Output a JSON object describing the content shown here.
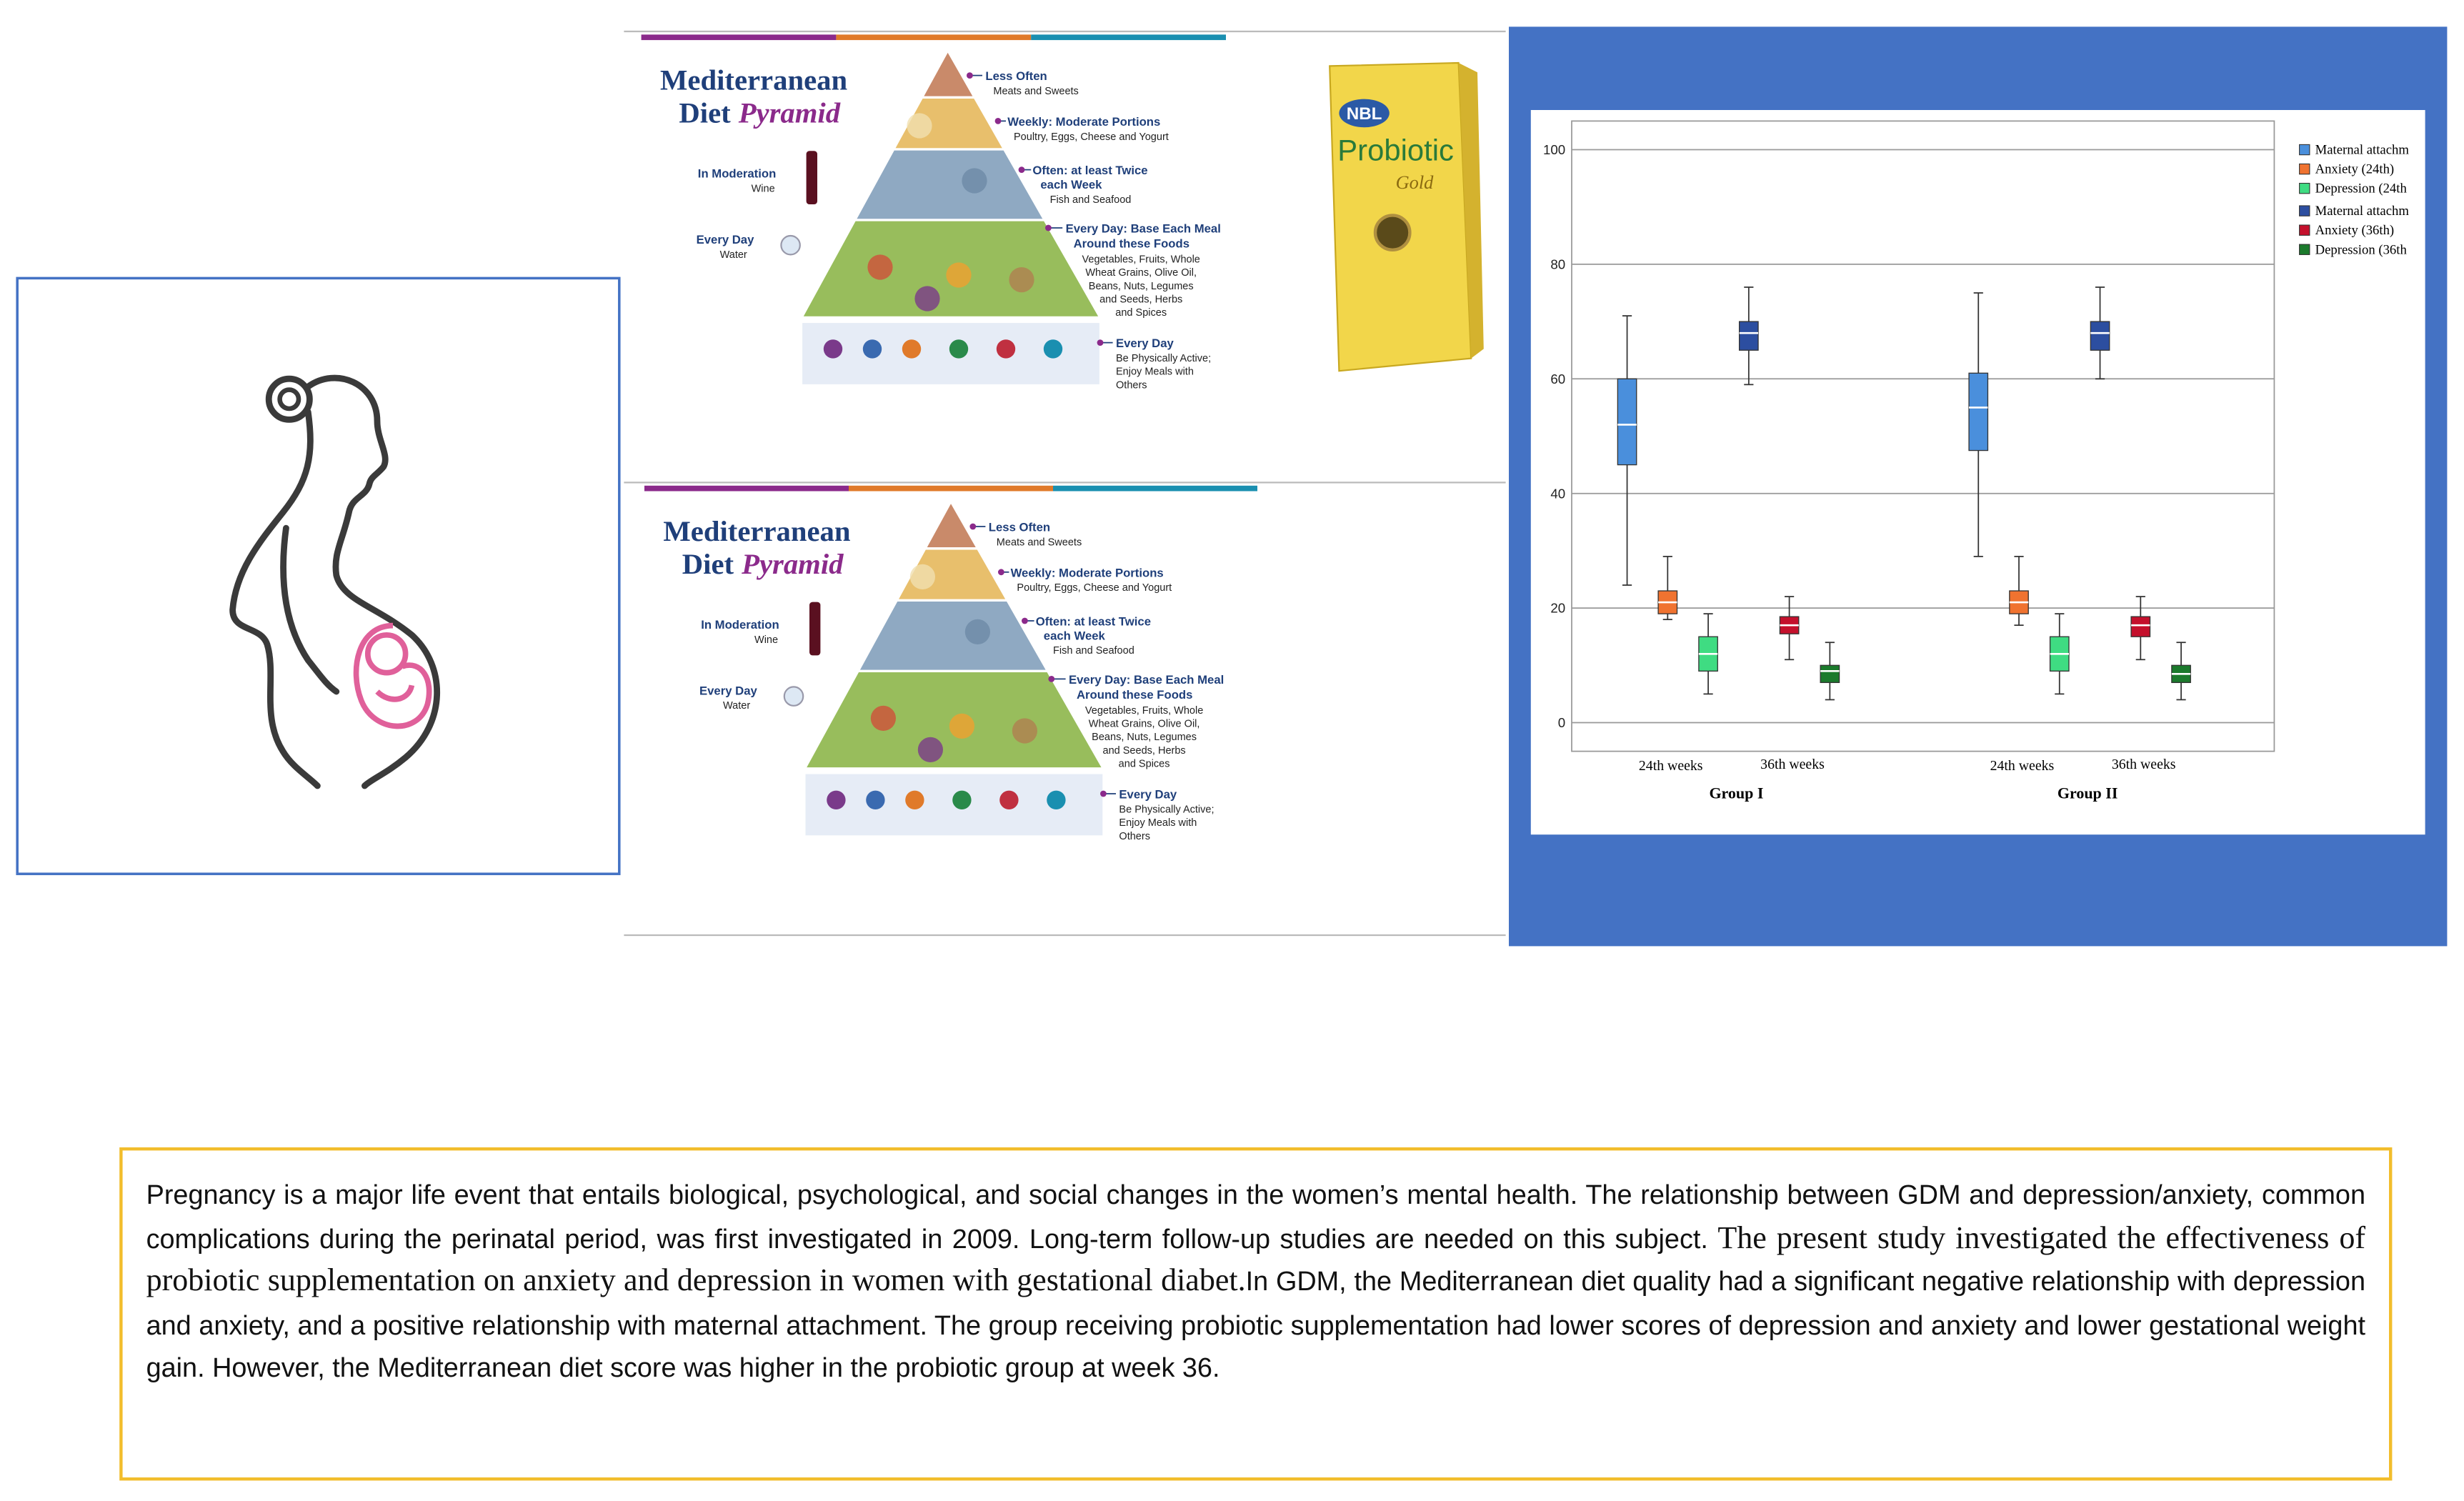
{
  "pyramids": [
    {
      "title": "Mediterranean",
      "subtitle": [
        "Diet",
        "Pyramid"
      ],
      "less_often": "Less Often",
      "less_often_items": "Meats and Sweets",
      "weekly": "Weekly: Moderate Portions",
      "weekly_items": "Poultry, Eggs, Cheese and Yogurt",
      "often": [
        "Often: at least Twice",
        "each Week"
      ],
      "often_items": "Fish and Seafood",
      "every_day_base": [
        "Every Day: Base Each Meal",
        "Around these Foods"
      ],
      "every_day_base_items": [
        "Vegetables, Fruits, Whole",
        "Wheat Grains, Olive Oil,",
        "Beans, Nuts, Legumes",
        "and Seeds, Herbs",
        "and Spices"
      ],
      "every_day_active": "Every Day",
      "every_day_active_items": [
        "Be Physically Active;",
        "Enjoy Meals with",
        "Others"
      ],
      "moderation": "In Moderation",
      "moderation_item": "Wine",
      "water_label": "Every Day",
      "water_item": "Water"
    },
    {
      "title": "Mediterranean",
      "subtitle": [
        "Diet",
        "Pyramid"
      ],
      "less_often": "Less Often",
      "less_often_items": "Meats and Sweets",
      "weekly": "Weekly: Moderate Portions",
      "weekly_items": "Poultry, Eggs, Cheese and Yogurt",
      "often": [
        "Often: at least Twice",
        "each Week"
      ],
      "often_items": "Fish and Seafood",
      "every_day_base": [
        "Every Day: Base Each Meal",
        "Around these Foods"
      ],
      "every_day_base_items": [
        "Vegetables, Fruits, Whole",
        "Wheat Grains, Olive Oil,",
        "Beans, Nuts, Legumes",
        "and Seeds, Herbs",
        "and Spices"
      ],
      "every_day_active": "Every Day",
      "every_day_active_items": [
        "Be Physically Active;",
        "Enjoy Meals with",
        "Others"
      ],
      "moderation": "In Moderation",
      "moderation_item": "Wine",
      "water_label": "Every Day",
      "water_item": "Water"
    }
  ],
  "probiotic": {
    "brand": "NBL",
    "name": "Probiotic",
    "variant": "Gold"
  },
  "chart_data": {
    "type": "box",
    "categories": [
      "Group I",
      "Group II"
    ],
    "sublabels": [
      [
        "24th weeks",
        "36th weeks"
      ],
      [
        "24th weeks",
        "36th weeks"
      ]
    ],
    "ylim": [
      -5,
      105
    ],
    "yticks": [
      0,
      20,
      40,
      60,
      80,
      100
    ],
    "grid": true,
    "legend": "right",
    "series": [
      {
        "name": "Maternal attachm",
        "color": "#4a8fdc",
        "values": [
          {
            "min": 24,
            "q1": 45,
            "median": 52,
            "q3": 60,
            "max": 71
          },
          {
            "min": 29,
            "q1": 47.5,
            "median": 55,
            "q3": 61,
            "max": 75
          }
        ]
      },
      {
        "name": "Anxiety (24th)",
        "color": "#f07330",
        "values": [
          {
            "min": 18,
            "q1": 19,
            "median": 21,
            "q3": 23,
            "max": 29
          },
          {
            "min": 17,
            "q1": 19,
            "median": 21,
            "q3": 23,
            "max": 29
          }
        ]
      },
      {
        "name": "Depression (24th",
        "color": "#3fdc82",
        "values": [
          {
            "min": 5,
            "q1": 9,
            "median": 12,
            "q3": 15,
            "max": 19
          },
          {
            "min": 5,
            "q1": 9,
            "median": 12,
            "q3": 15,
            "max": 19
          }
        ]
      },
      {
        "name": "Maternal attachm",
        "color": "#2c4ea0",
        "values": [
          {
            "min": 59,
            "q1": 65,
            "median": 68,
            "q3": 70,
            "max": 76
          },
          {
            "min": 60,
            "q1": 65,
            "median": 68,
            "q3": 70,
            "max": 76
          }
        ]
      },
      {
        "name": "Anxiety (36th)",
        "color": "#c4102c",
        "values": [
          {
            "min": 11,
            "q1": 15.5,
            "median": 17,
            "q3": 18.5,
            "max": 22
          },
          {
            "min": 11,
            "q1": 15,
            "median": 17,
            "q3": 18.5,
            "max": 22
          }
        ]
      },
      {
        "name": "Depression (36th",
        "color": "#1b7a2c",
        "values": [
          {
            "min": 4,
            "q1": 7,
            "median": 9,
            "q3": 10,
            "max": 14
          },
          {
            "min": 4,
            "q1": 7,
            "median": 8.5,
            "q3": 10,
            "max": 14
          }
        ]
      }
    ]
  },
  "summary": {
    "paragraph": [
      "Pregnancy is a major life event that entails biological, psychological, and social changes in the women’s mental health. The relationship between GDM and depression/anxiety, common complications during the perinatal period, was first investigated in 2009. Long-term follow-up studies are needed on this subject.",
      "The present study investigated the effectiveness of probiotic supplementation on anxiety and depression in women with gestational diabet.",
      "In GDM, the Mediterranean diet quality had a significant negative relationship with depression and anxiety, and a positive relationship with maternal attachment. The group receiving probiotic supplementation had lower scores of depression and anxiety and lower gestational weight gain. However, the Mediterranean diet score was higher in the probiotic group at week 36."
    ]
  }
}
